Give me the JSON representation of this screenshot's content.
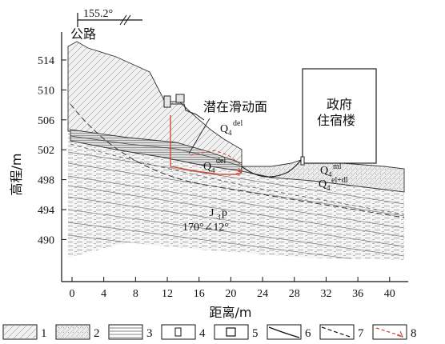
{
  "diagram": {
    "bearing": "155.2°",
    "road_label": "公路",
    "sliding_surface_label": "潜在滑动面",
    "building_label_line1": "政府",
    "building_label_line2": "住宿楼",
    "q4del": {
      "base": "Q",
      "sub": "4",
      "sup": "del"
    },
    "q4ml": {
      "base": "Q",
      "sub": "4",
      "sup": "ml"
    },
    "q4eldl": {
      "base": "Q",
      "sub": "4",
      "sup": "el+dl"
    },
    "j3p": {
      "base": "J",
      "sub": "3",
      "rest": "p"
    },
    "attitude": "170°∠12°"
  },
  "axes": {
    "y_title": "高程/m",
    "x_title": "距离/m",
    "y_ticks": [
      "514",
      "510",
      "506",
      "502",
      "498",
      "494",
      "490"
    ],
    "x_ticks": [
      "0",
      "4",
      "8",
      "12",
      "16",
      "20",
      "24",
      "28",
      "32",
      "36",
      "40"
    ]
  },
  "legend": [
    "1",
    "2",
    "3",
    "4",
    "5",
    "6",
    "7",
    "8"
  ]
}
